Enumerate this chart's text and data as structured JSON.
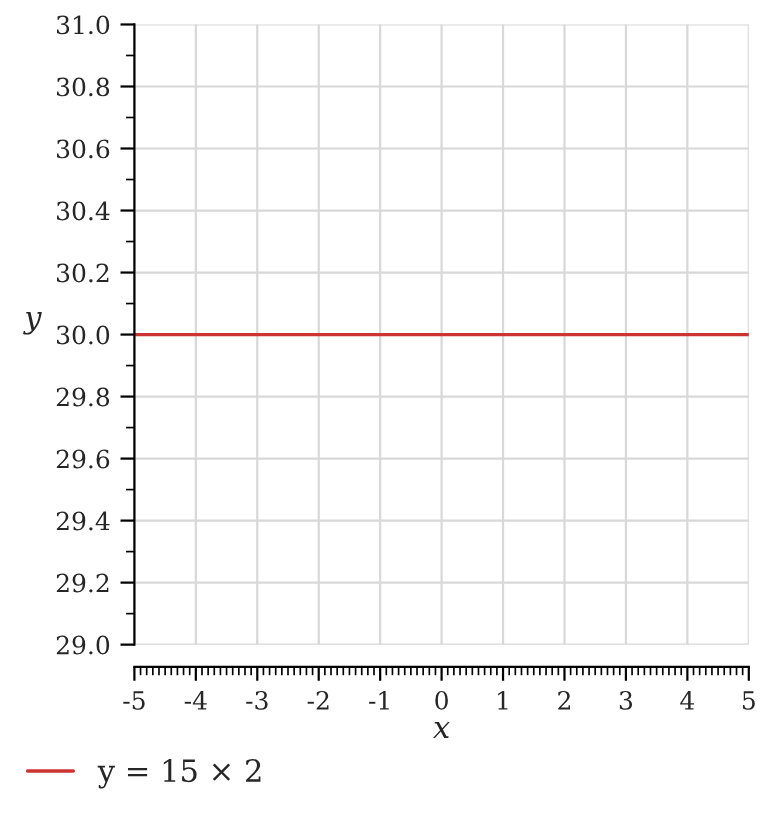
{
  "chart_data": {
    "type": "line",
    "xlabel": "x",
    "ylabel": "y",
    "x": [
      -5,
      5
    ],
    "series": [
      {
        "name": "y = 15 × 2",
        "color": "#cc3333",
        "values": [
          30,
          30
        ]
      }
    ],
    "xlim": [
      -5,
      5
    ],
    "xticks": [
      -5,
      -4,
      -3,
      -2,
      -1,
      0,
      1,
      2,
      3,
      4,
      5
    ],
    "ylim": [
      29.0,
      31.0
    ],
    "yticks": [
      {
        "value": 29.0,
        "label": "29.0"
      },
      {
        "value": 29.2,
        "label": "29.2"
      },
      {
        "value": 29.4,
        "label": "29.4"
      },
      {
        "value": 29.6,
        "label": "29.6"
      },
      {
        "value": 29.8,
        "label": "29.8"
      },
      {
        "value": 30.0,
        "label": "30.0"
      },
      {
        "value": 30.2,
        "label": "30.2"
      },
      {
        "value": 30.4,
        "label": "30.4"
      },
      {
        "value": 30.6,
        "label": "30.6"
      },
      {
        "value": 30.8,
        "label": "30.8"
      },
      {
        "value": 31.0,
        "label": "31.0"
      }
    ],
    "grid": true,
    "legend": "bottom left",
    "marker": "none",
    "line_style": "solid"
  }
}
